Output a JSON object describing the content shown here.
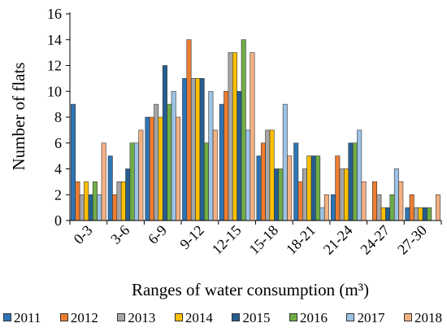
{
  "chart_data": {
    "type": "bar",
    "xlabel": "Ranges of water consumption (m³)",
    "ylabel": "Number of flats",
    "ylim": [
      0,
      16
    ],
    "yticks": [
      0,
      2,
      4,
      6,
      8,
      10,
      12,
      14,
      16
    ],
    "grid": false,
    "legend_position": "bottom",
    "categories": [
      "0-3",
      "3-6",
      "6-9",
      "9-12",
      "12-15",
      "15-18",
      "18-21",
      "21-24",
      "24-27",
      "27-30"
    ],
    "series": [
      {
        "name": "2011",
        "color": "#2E75B6",
        "values": [
          9,
          5,
          8,
          11,
          9,
          5,
          6,
          2,
          0,
          1
        ]
      },
      {
        "name": "2012",
        "color": "#ED7D31",
        "values": [
          3,
          2,
          8,
          14,
          10,
          6,
          3,
          5,
          3,
          2
        ]
      },
      {
        "name": "2013",
        "color": "#A5A5A5",
        "values": [
          2,
          3,
          9,
          11,
          13,
          7,
          4,
          4,
          2,
          1
        ]
      },
      {
        "name": "2014",
        "color": "#FFC000",
        "values": [
          3,
          3,
          8,
          11,
          13,
          7,
          5,
          4,
          1,
          1
        ]
      },
      {
        "name": "2015",
        "color": "#255E91",
        "values": [
          2,
          4,
          12,
          11,
          10,
          4,
          5,
          6,
          1,
          1
        ]
      },
      {
        "name": "2016",
        "color": "#70AD47",
        "values": [
          3,
          6,
          9,
          6,
          14,
          4,
          5,
          6,
          2,
          1
        ]
      },
      {
        "name": "2017",
        "color": "#9DC3E6",
        "values": [
          2,
          6,
          10,
          10,
          7,
          9,
          1,
          7,
          4,
          0
        ]
      },
      {
        "name": "2018",
        "color": "#F4B183",
        "values": [
          6,
          7,
          8,
          7,
          13,
          5,
          2,
          3,
          3,
          2
        ]
      }
    ]
  }
}
